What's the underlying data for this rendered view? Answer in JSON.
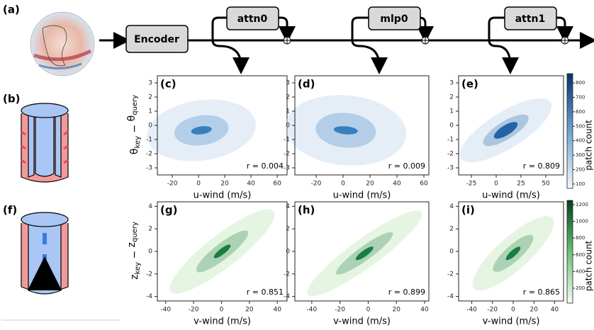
{
  "panel_labels": {
    "a": "(a)",
    "b": "(b)",
    "f": "(f)"
  },
  "pipeline": {
    "encoder": "Encoder",
    "blocks": [
      "attn0",
      "mlp0",
      "attn1"
    ]
  },
  "ylabels": [
    {
      "main1": "θ",
      "sub1": "key",
      "op": " − ",
      "main2": "θ",
      "sub2": "query"
    },
    {
      "main1": "z",
      "sub1": "key",
      "op": " − ",
      "main2": "z",
      "sub2": "query"
    }
  ],
  "plots": [
    {
      "label": "(c)",
      "xlabel": "u-wind (m/s)",
      "xlim": [
        -31.4,
        67.5
      ],
      "xticks": [
        -20,
        0,
        20,
        40,
        60
      ],
      "ylim": [
        -3.5,
        3.5
      ],
      "yticks": [
        -3,
        -2,
        -1,
        0,
        1,
        2,
        3
      ],
      "annotation": "r = 0.004"
    },
    {
      "label": "(d)",
      "xlabel": "u-wind (m/s)",
      "xlim": [
        -35.8,
        63.7
      ],
      "xticks": [
        -20,
        0,
        20,
        40,
        60
      ],
      "ylim": [
        -3.5,
        3.5
      ],
      "yticks": [
        -3,
        -2,
        -1,
        0,
        1,
        2,
        3
      ],
      "annotation": "r = 0.009"
    },
    {
      "label": "(e)",
      "xlabel": "u-wind (m/s)",
      "xlim": [
        -37.9,
        67.9
      ],
      "xticks": [
        -25,
        0,
        25,
        50
      ],
      "ylim": [
        -3.5,
        3.5
      ],
      "yticks": [
        -3,
        -2,
        -1,
        0,
        1,
        2,
        3
      ],
      "annotation": "r = 0.809"
    },
    {
      "label": "(g)",
      "xlabel": "v-wind (m/s)",
      "xlim": [
        -46,
        47
      ],
      "xticks": [
        -40,
        -20,
        0,
        20,
        40
      ],
      "ylim": [
        -4.4,
        4.4
      ],
      "yticks": [
        -4,
        -2,
        0,
        2,
        4
      ],
      "annotation": "r = 0.851"
    },
    {
      "label": "(h)",
      "xlabel": "v-wind (m/s)",
      "xlim": [
        -52,
        43
      ],
      "xticks": [
        -40,
        -20,
        0,
        20,
        40
      ],
      "ylim": [
        -4.4,
        4.4
      ],
      "yticks": [
        -4,
        -2,
        0,
        2,
        4
      ],
      "annotation": "r = 0.899"
    },
    {
      "label": "(i)",
      "xlabel": "v-wind (m/s)",
      "xlim": [
        -52.7,
        48.6
      ],
      "xticks": [
        -40,
        -20,
        0,
        20,
        40
      ],
      "ylim": [
        -4.4,
        4.4
      ],
      "yticks": [
        -4,
        -2,
        0,
        2,
        4
      ],
      "annotation": "r = 0.865"
    }
  ],
  "colorbars": [
    {
      "label": "patch count",
      "lim": [
        70,
        864
      ],
      "ticks": [
        100,
        200,
        300,
        400,
        500,
        600,
        700,
        800
      ]
    },
    {
      "label": "patch count",
      "lim": [
        22,
        1250
      ],
      "ticks": [
        200,
        400,
        600,
        800,
        1000,
        1200
      ]
    }
  ]
}
